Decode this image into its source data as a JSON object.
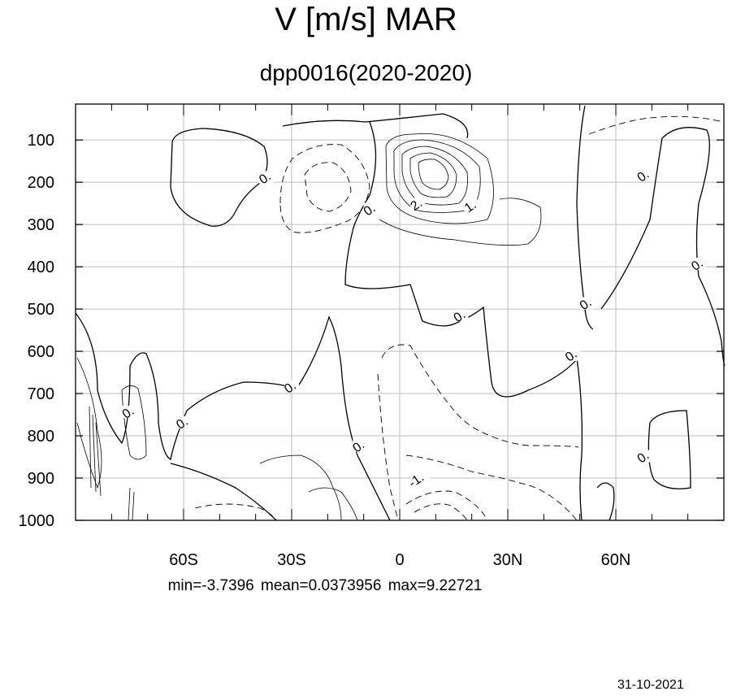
{
  "chart_data": {
    "type": "contour",
    "title": "V [m/s] MAR",
    "subtitle": "dpp0016(2020-2020)",
    "y_ticks": [
      100,
      200,
      300,
      400,
      500,
      600,
      700,
      800,
      900,
      1000
    ],
    "y_range": [
      15,
      1000
    ],
    "y_inverted": true,
    "x_ticks": [
      {
        "value": -60,
        "label": "60S"
      },
      {
        "value": -30,
        "label": "30S"
      },
      {
        "value": 0,
        "label": "0"
      },
      {
        "value": 30,
        "label": "30N"
      },
      {
        "value": 60,
        "label": "60N"
      }
    ],
    "x_range": [
      -90,
      90
    ],
    "grid": true,
    "stats_text": "min=-3.7396   mean=0.0373956   max=9.22721",
    "contour_labels": [
      {
        "text": "0.",
        "lat": -37,
        "p": 195
      },
      {
        "text": "0.",
        "lat": -8,
        "p": 270
      },
      {
        "text": "2.",
        "lat": 5,
        "p": 258
      },
      {
        "text": "1.",
        "lat": 20,
        "p": 262
      },
      {
        "text": "0.",
        "lat": 68,
        "p": 190
      },
      {
        "text": "0.",
        "lat": 83,
        "p": 400
      },
      {
        "text": "0.",
        "lat": 52,
        "p": 493
      },
      {
        "text": "0.",
        "lat": 17,
        "p": 522
      },
      {
        "text": "0.",
        "lat": 48,
        "p": 615
      },
      {
        "text": "0.",
        "lat": -30,
        "p": 690
      },
      {
        "text": "0.",
        "lat": -60,
        "p": 775
      },
      {
        "text": "0.",
        "lat": -75,
        "p": 750
      },
      {
        "text": "0.",
        "lat": -11,
        "p": 830
      },
      {
        "text": "-1.",
        "lat": 5,
        "p": 910
      },
      {
        "text": "0.",
        "lat": 68,
        "p": 855
      }
    ]
  },
  "footer": {
    "date": "31-10-2021"
  }
}
